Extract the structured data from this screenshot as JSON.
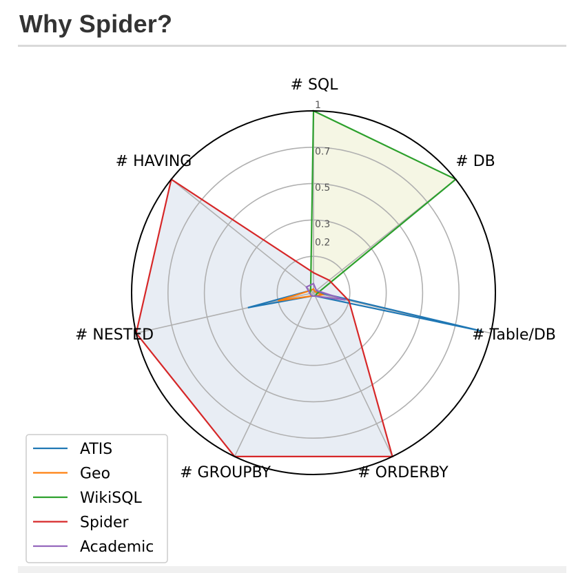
{
  "page": {
    "title": "Why Spider?"
  },
  "chart_data": {
    "type": "radar",
    "title": "",
    "axes": [
      "# SQL",
      "# DB",
      "# Table/DB",
      "# ORDERBY",
      "# GROUPBY",
      "# NESTED",
      "# HAVING"
    ],
    "rlim": [
      0,
      1
    ],
    "radial_ticks": [
      {
        "value": 0.2,
        "label": "0.2"
      },
      {
        "value": 0.3,
        "label": "0.3"
      },
      {
        "value": 0.5,
        "label": "0.5"
      },
      {
        "value": 0.7,
        "label": "0.7"
      },
      {
        "value": 1.0,
        "label": "1"
      }
    ],
    "grid": true,
    "legend_position": "bottom-left",
    "series": [
      {
        "name": "ATIS",
        "color": "#1f77b4",
        "fill": null,
        "values": [
          0.02,
          0.01,
          0.95,
          0.02,
          0.02,
          0.37,
          0.02
        ]
      },
      {
        "name": "Geo",
        "color": "#ff7f0e",
        "fill": null,
        "values": [
          0.02,
          0.01,
          0.05,
          0.02,
          0.02,
          0.2,
          0.02
        ]
      },
      {
        "name": "WikiSQL",
        "color": "#2ca02c",
        "fill": "#f5f6e4",
        "values": [
          1.0,
          1.0,
          0.02,
          0.02,
          0.02,
          0.02,
          0.02
        ]
      },
      {
        "name": "Spider",
        "color": "#d62728",
        "fill": "#e8edf4",
        "values": [
          0.11,
          0.11,
          0.2,
          1.0,
          1.0,
          1.0,
          1.0
        ]
      },
      {
        "name": "Academic",
        "color": "#9467bd",
        "fill": null,
        "values": [
          0.05,
          0.02,
          0.18,
          0.02,
          0.02,
          0.02,
          0.05
        ]
      }
    ]
  }
}
